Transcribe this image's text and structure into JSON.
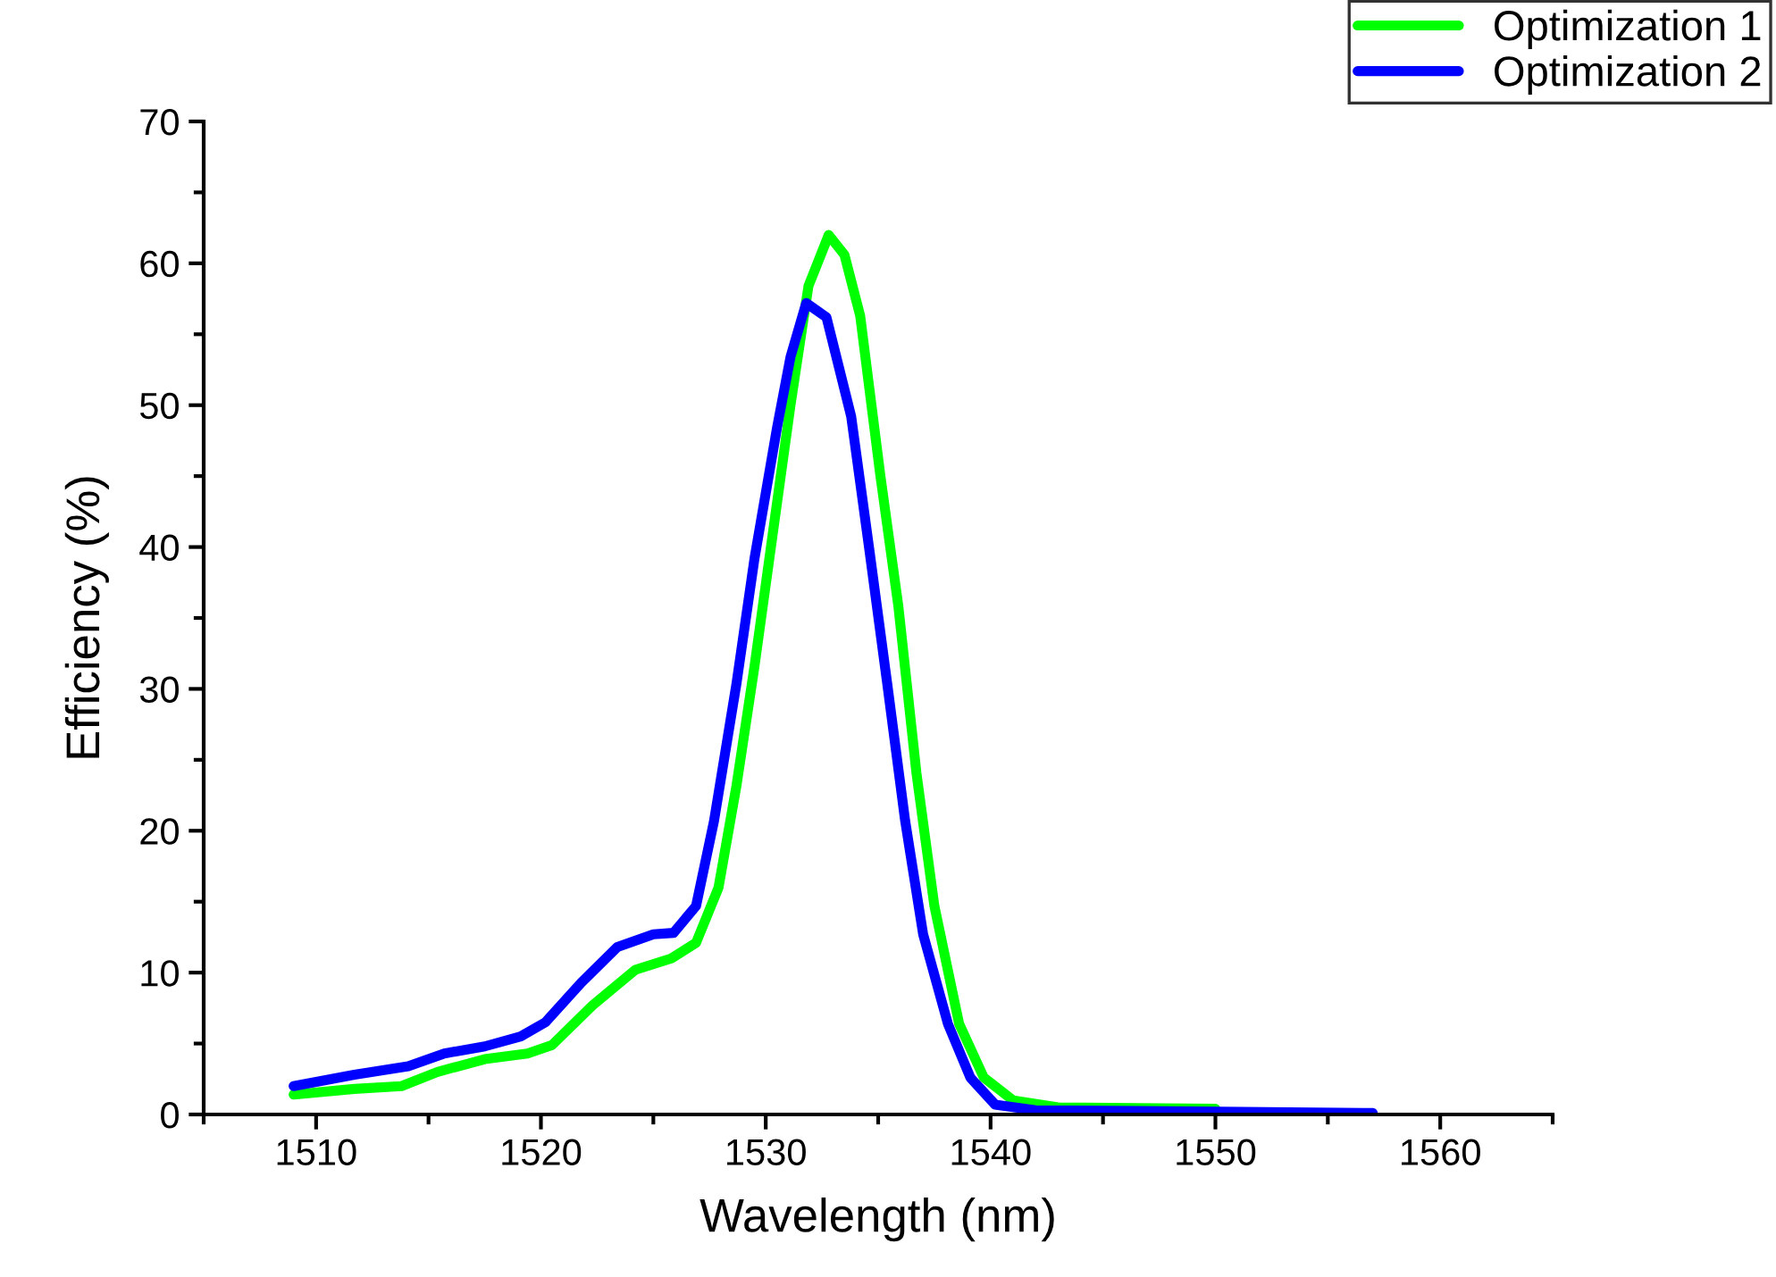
{
  "chart_data": {
    "type": "line",
    "xlabel": "Wavelength (nm)",
    "ylabel": "Efficiency (%)",
    "xlim": [
      1505,
      1565
    ],
    "ylim": [
      0,
      70
    ],
    "xticks": [
      {
        "value": 1505,
        "label": null
      },
      1510,
      {
        "value": 1515,
        "label": null
      },
      1520,
      {
        "value": 1525,
        "label": null
      },
      1530,
      {
        "value": 1535,
        "label": null
      },
      1540,
      {
        "value": 1545,
        "label": null
      },
      1550,
      {
        "value": 1555,
        "label": null
      },
      1560,
      {
        "value": 1565,
        "label": null
      }
    ],
    "yticks": [
      0,
      {
        "value": 5,
        "label": null
      },
      10,
      {
        "value": 15,
        "label": null
      },
      20,
      {
        "value": 25,
        "label": null
      },
      30,
      {
        "value": 35,
        "label": null
      },
      40,
      {
        "value": 45,
        "label": null
      },
      50,
      {
        "value": 55,
        "label": null
      },
      60,
      {
        "value": 65,
        "label": null
      },
      70
    ],
    "grid": false,
    "legend": "top right",
    "marker": "none",
    "line_style": "solid",
    "series": [
      {
        "name": "Optimization 1",
        "color": "#00ff00",
        "x": [
          1509,
          1511.7,
          1513.8,
          1515.4,
          1517.5,
          1519.4,
          1520.5,
          1522.3,
          1524.2,
          1525.8,
          1526.9,
          1527.9,
          1528.7,
          1529.5,
          1530.3,
          1531.1,
          1531.9,
          1532.8,
          1533.5,
          1534.2,
          1535.1,
          1535.9,
          1536.7,
          1537.5,
          1538.6,
          1539.7,
          1541,
          1543,
          1550
        ],
        "values": [
          1.4,
          1.8,
          2.0,
          3.0,
          3.9,
          4.3,
          4.9,
          7.7,
          10.2,
          11.0,
          12.1,
          16.0,
          23.2,
          31.6,
          40.8,
          50,
          58.4,
          62.0,
          60.6,
          56.3,
          45,
          35.8,
          24.1,
          14.7,
          6.4,
          2.6,
          1.0,
          0.5,
          0.4
        ]
      },
      {
        "name": "Optimization 2",
        "color": "#0000ff",
        "x": [
          1509,
          1511.7,
          1514.1,
          1515.7,
          1517.5,
          1519.1,
          1520.2,
          1521.8,
          1523.4,
          1525,
          1525.9,
          1526.9,
          1527.7,
          1528.7,
          1529.5,
          1530.5,
          1531.1,
          1531.8,
          1532.7,
          1533.8,
          1534.6,
          1535.4,
          1536.2,
          1537,
          1538.1,
          1539.1,
          1540.2,
          1542,
          1550,
          1557
        ],
        "values": [
          2.0,
          2.8,
          3.4,
          4.3,
          4.8,
          5.5,
          6.5,
          9.3,
          11.8,
          12.7,
          12.8,
          14.7,
          20.7,
          30.4,
          39.2,
          48.4,
          53.4,
          57.2,
          56.2,
          49.2,
          39.9,
          30.4,
          20.7,
          12.7,
          6.4,
          2.6,
          0.7,
          0.3,
          0.2,
          0.1
        ]
      }
    ]
  }
}
